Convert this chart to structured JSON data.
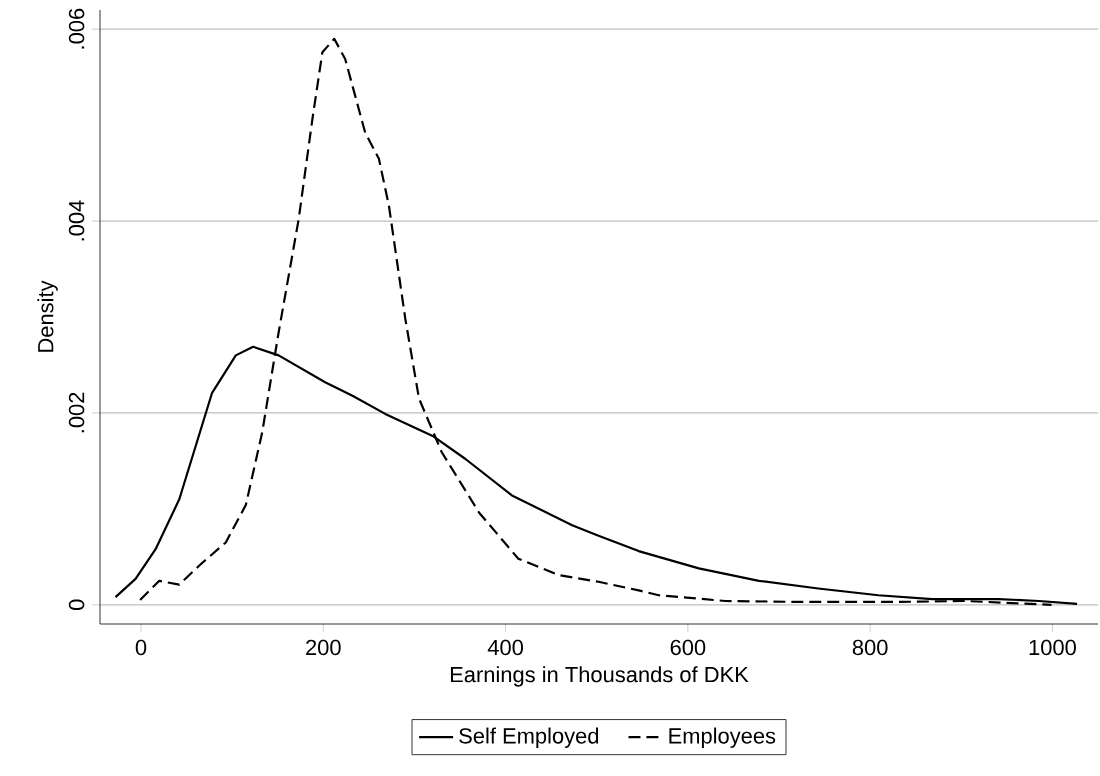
{
  "chart_data": {
    "type": "line",
    "xlabel": "Earnings in Thousands of DKK",
    "ylabel": "Density",
    "xlim": [
      -45,
      1050
    ],
    "ylim": [
      -0.0002,
      0.0062
    ],
    "xticks": [
      0,
      200,
      400,
      600,
      800,
      1000
    ],
    "yticks": [
      0,
      {
        "value": 0.002,
        "label": ".002"
      },
      {
        "value": 0.004,
        "label": ".004"
      },
      {
        "value": 0.006,
        "label": ".006"
      }
    ],
    "grid": "y",
    "legend": "bottom",
    "marker": "none",
    "series": [
      {
        "name": "Self Employed",
        "color": "#000000",
        "line_style": "solid",
        "x": [
          -28,
          -6,
          16,
          42,
          78,
          104,
          123,
          151,
          202,
          232,
          268,
          320,
          356,
          407,
          473,
          502,
          546,
          612,
          678,
          743,
          809,
          868,
          941,
          985,
          1027
        ],
        "values": [
          8e-05,
          0.00027,
          0.00058,
          0.0011,
          0.00221,
          0.0026,
          0.00269,
          0.0026,
          0.00232,
          0.00218,
          0.00199,
          0.00176,
          0.00152,
          0.00114,
          0.00083,
          0.00072,
          0.00056,
          0.00038,
          0.00025,
          0.00017,
          0.0001,
          6e-05,
          6e-05,
          4e-05,
          1e-05
        ]
      },
      {
        "name": "Employees",
        "color": "#000000",
        "line_style": "dashed",
        "x": [
          -1,
          20,
          42,
          64,
          93,
          115,
          133,
          151,
          173,
          188,
          199,
          212,
          224,
          246,
          261,
          272,
          290,
          305,
          330,
          371,
          414,
          458,
          502,
          546,
          568,
          641,
          722,
          831,
          904,
          999
        ],
        "values": [
          5e-05,
          0.00025,
          0.00021,
          0.00041,
          0.00065,
          0.00104,
          0.0018,
          0.00284,
          0.00402,
          0.00506,
          0.00576,
          0.0059,
          0.00569,
          0.00492,
          0.00465,
          0.00416,
          0.00298,
          0.00215,
          0.00159,
          0.00096,
          0.00048,
          0.00031,
          0.00024,
          0.00015,
          0.0001,
          4e-05,
          3e-05,
          3e-05,
          4e-05,
          0
        ]
      }
    ]
  }
}
